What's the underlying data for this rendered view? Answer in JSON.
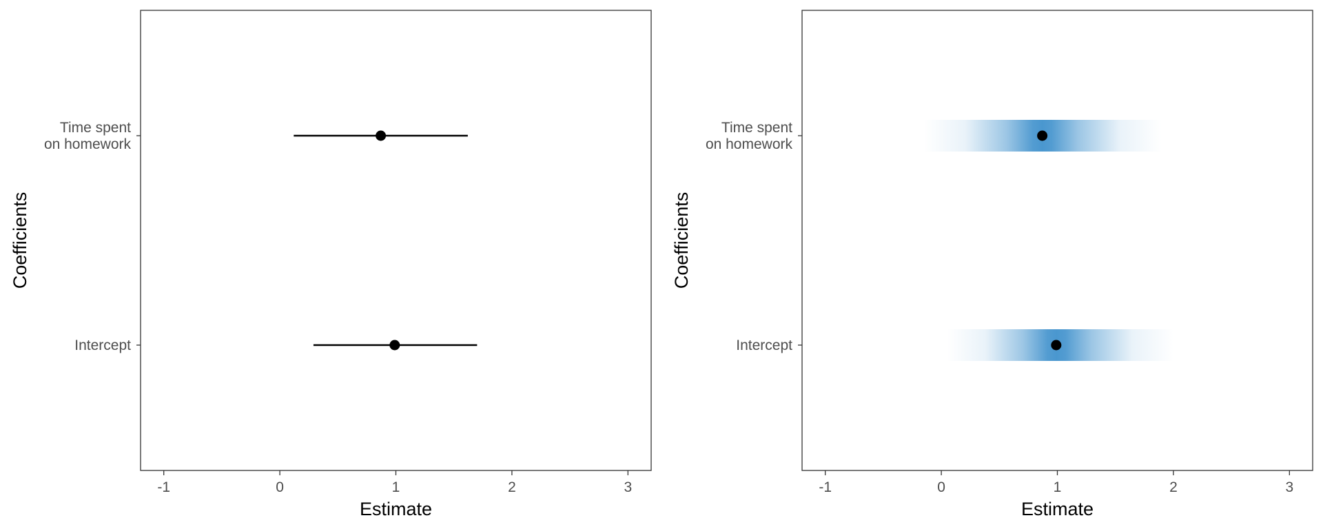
{
  "chart_data": [
    {
      "type": "coefficient-plot",
      "style": "interval",
      "xlabel": "Estimate",
      "ylabel": "Coefficients",
      "xlim": [
        -1.2,
        3.2
      ],
      "xticks": [
        -1,
        0,
        1,
        2,
        3
      ],
      "xtick_labels": [
        "-1",
        "0",
        "1",
        "2",
        "3"
      ],
      "grid": false,
      "categories": [
        "Time spent\non homework",
        "Intercept"
      ],
      "points": [
        {
          "label_lines": [
            "Time spent",
            "on homework"
          ],
          "estimate": 0.87,
          "lower": 0.12,
          "upper": 1.62
        },
        {
          "label_lines": [
            "Intercept"
          ],
          "estimate": 0.99,
          "lower": 0.29,
          "upper": 1.7
        }
      ],
      "color": "#000000"
    },
    {
      "type": "coefficient-plot",
      "style": "gradient-interval",
      "xlabel": "Estimate",
      "ylabel": "Coefficients",
      "xlim": [
        -1.2,
        3.2
      ],
      "xticks": [
        -1,
        0,
        1,
        2,
        3
      ],
      "xtick_labels": [
        "-1",
        "0",
        "1",
        "2",
        "3"
      ],
      "grid": false,
      "categories": [
        "Time spent\non homework",
        "Intercept"
      ],
      "points": [
        {
          "label_lines": [
            "Time spent",
            "on homework"
          ],
          "estimate": 0.87,
          "lower": -0.15,
          "upper": 1.9
        },
        {
          "label_lines": [
            "Intercept"
          ],
          "estimate": 0.99,
          "lower": 0.05,
          "upper": 2.0
        }
      ],
      "gradient_color": "#4a97cf",
      "color": "#000000"
    }
  ]
}
